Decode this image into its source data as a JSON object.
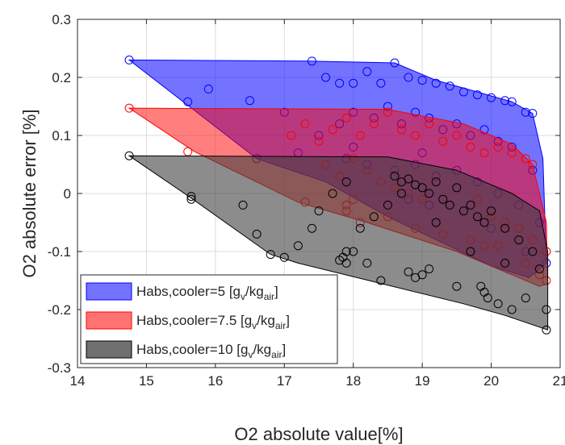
{
  "chart_data": {
    "type": "scatter",
    "title": "",
    "xlabel": "O2 absolute value[%]",
    "ylabel": "O2 absolute error [%]",
    "xlim": [
      14,
      21
    ],
    "ylim": [
      -0.3,
      0.3
    ],
    "xticks": [
      "14",
      "15",
      "16",
      "17",
      "18",
      "19",
      "20",
      "21"
    ],
    "yticks": [
      "-0.3",
      "-0.2",
      "-0.1",
      "0",
      "0.1",
      "0.2",
      "0.3"
    ],
    "grid": true,
    "legend_position": "bottom-left",
    "legend": [
      {
        "prefix": "Habs,cooler=5 [g",
        "sub1": "v",
        "mid": "/kg",
        "sub2": "air",
        "suffix": "]"
      },
      {
        "prefix": "Habs,cooler=7.5 [g",
        "sub1": "v",
        "mid": "/kg",
        "sub2": "air",
        "suffix": "]"
      },
      {
        "prefix": "Habs,cooler=10 [g",
        "sub1": "v",
        "mid": "/kg",
        "sub2": "air",
        "suffix": "]"
      }
    ],
    "series": [
      {
        "color": "#0000ff",
        "fill": "#0000ff",
        "hull": [
          [
            14.75,
            0.23
          ],
          [
            17.4,
            0.228
          ],
          [
            18.6,
            0.225
          ],
          [
            19.2,
            0.195
          ],
          [
            20.3,
            0.158
          ],
          [
            20.6,
            0.138
          ],
          [
            20.75,
            0.06
          ],
          [
            20.8,
            -0.12
          ],
          [
            20.55,
            -0.145
          ],
          [
            20.0,
            -0.125
          ],
          [
            18.5,
            -0.04
          ],
          [
            17.6,
            0.02
          ],
          [
            16.6,
            0.06
          ]
        ],
        "points": [
          [
            14.75,
            0.23
          ],
          [
            15.6,
            0.158
          ],
          [
            15.9,
            0.18
          ],
          [
            16.5,
            0.16
          ],
          [
            17.0,
            0.14
          ],
          [
            17.4,
            0.228
          ],
          [
            17.6,
            0.2
          ],
          [
            17.8,
            0.19
          ],
          [
            18.0,
            0.19
          ],
          [
            18.2,
            0.21
          ],
          [
            18.4,
            0.19
          ],
          [
            18.6,
            0.225
          ],
          [
            18.8,
            0.2
          ],
          [
            19.0,
            0.195
          ],
          [
            19.2,
            0.19
          ],
          [
            19.4,
            0.185
          ],
          [
            19.6,
            0.175
          ],
          [
            19.8,
            0.17
          ],
          [
            20.0,
            0.165
          ],
          [
            20.2,
            0.16
          ],
          [
            20.3,
            0.158
          ],
          [
            20.5,
            0.14
          ],
          [
            20.6,
            0.138
          ],
          [
            17.5,
            0.1
          ],
          [
            17.8,
            0.12
          ],
          [
            18.0,
            0.14
          ],
          [
            18.3,
            0.13
          ],
          [
            18.5,
            0.15
          ],
          [
            18.7,
            0.12
          ],
          [
            18.9,
            0.14
          ],
          [
            19.1,
            0.13
          ],
          [
            19.3,
            0.11
          ],
          [
            19.5,
            0.12
          ],
          [
            19.7,
            0.1
          ],
          [
            19.9,
            0.11
          ],
          [
            20.1,
            0.09
          ],
          [
            20.3,
            0.08
          ],
          [
            17.9,
            0.06
          ],
          [
            18.2,
            0.05
          ],
          [
            18.6,
            0.04
          ],
          [
            18.9,
            0.05
          ],
          [
            19.2,
            0.03
          ],
          [
            19.5,
            0.04
          ],
          [
            19.8,
            0.02
          ],
          [
            20.1,
            0.0
          ],
          [
            20.4,
            -0.02
          ],
          [
            20.7,
            -0.05
          ],
          [
            18.8,
            -0.01
          ],
          [
            19.1,
            -0.02
          ],
          [
            19.6,
            -0.03
          ],
          [
            20.0,
            -0.06
          ],
          [
            20.5,
            -0.1
          ],
          [
            20.8,
            -0.12
          ],
          [
            17.2,
            0.07
          ],
          [
            16.6,
            0.06
          ],
          [
            18.0,
            0.08
          ],
          [
            19.0,
            0.07
          ],
          [
            20.6,
            0.04
          ]
        ]
      },
      {
        "color": "#ff0000",
        "fill": "#ff0000",
        "hull": [
          [
            14.75,
            0.147
          ],
          [
            18.5,
            0.145
          ],
          [
            19.6,
            0.12
          ],
          [
            20.3,
            0.085
          ],
          [
            20.6,
            0.05
          ],
          [
            20.8,
            -0.05
          ],
          [
            20.82,
            -0.155
          ],
          [
            20.7,
            -0.16
          ],
          [
            19.5,
            -0.1
          ],
          [
            18.2,
            -0.05
          ],
          [
            17.2,
            -0.015
          ],
          [
            15.7,
            0.072
          ]
        ],
        "points": [
          [
            14.75,
            0.147
          ],
          [
            15.6,
            0.072
          ],
          [
            17.1,
            0.1
          ],
          [
            17.3,
            0.12
          ],
          [
            17.5,
            0.09
          ],
          [
            17.7,
            0.11
          ],
          [
            17.9,
            0.13
          ],
          [
            18.1,
            0.1
          ],
          [
            18.3,
            0.12
          ],
          [
            18.5,
            0.14
          ],
          [
            18.7,
            0.11
          ],
          [
            18.9,
            0.1
          ],
          [
            19.1,
            0.12
          ],
          [
            19.3,
            0.09
          ],
          [
            19.5,
            0.1
          ],
          [
            19.7,
            0.08
          ],
          [
            19.9,
            0.07
          ],
          [
            20.1,
            0.08
          ],
          [
            20.3,
            0.07
          ],
          [
            20.5,
            0.06
          ],
          [
            20.6,
            0.05
          ],
          [
            17.6,
            0.05
          ],
          [
            17.8,
            0.03
          ],
          [
            18.0,
            0.06
          ],
          [
            18.2,
            0.04
          ],
          [
            18.4,
            0.02
          ],
          [
            18.6,
            0.01
          ],
          [
            18.8,
            0.0
          ],
          [
            19.0,
            -0.01
          ],
          [
            19.2,
            0.02
          ],
          [
            19.4,
            -0.02
          ],
          [
            19.6,
            -0.03
          ],
          [
            19.8,
            -0.01
          ],
          [
            20.0,
            -0.04
          ],
          [
            20.2,
            -0.05
          ],
          [
            20.4,
            -0.06
          ],
          [
            20.6,
            -0.08
          ],
          [
            20.8,
            -0.1
          ],
          [
            20.8,
            -0.15
          ],
          [
            17.3,
            -0.015
          ],
          [
            17.9,
            -0.03
          ],
          [
            18.1,
            -0.05
          ],
          [
            18.5,
            -0.04
          ],
          [
            18.9,
            -0.06
          ],
          [
            19.3,
            -0.07
          ],
          [
            19.7,
            -0.08
          ],
          [
            20.1,
            -0.09
          ],
          [
            20.5,
            -0.12
          ],
          [
            17.9,
            -0.02
          ],
          [
            18.0,
            -0.01
          ],
          [
            19.9,
            -0.09
          ],
          [
            20.7,
            -0.14
          ]
        ]
      },
      {
        "color": "#000000",
        "fill": "#404040",
        "hull": [
          [
            14.75,
            0.065
          ],
          [
            18.5,
            0.063
          ],
          [
            19.5,
            0.04
          ],
          [
            20.3,
            0.0
          ],
          [
            20.7,
            -0.03
          ],
          [
            20.82,
            -0.1
          ],
          [
            20.82,
            -0.235
          ],
          [
            20.2,
            -0.21
          ],
          [
            19.6,
            -0.19
          ],
          [
            18.4,
            -0.155
          ],
          [
            17.2,
            -0.12
          ],
          [
            16.8,
            -0.105
          ],
          [
            15.65,
            -0.008
          ]
        ],
        "points": [
          [
            14.75,
            0.065
          ],
          [
            15.65,
            -0.005
          ],
          [
            15.65,
            -0.01
          ],
          [
            16.4,
            -0.02
          ],
          [
            16.6,
            -0.07
          ],
          [
            16.8,
            -0.105
          ],
          [
            17.0,
            -0.11
          ],
          [
            17.2,
            -0.09
          ],
          [
            17.4,
            -0.06
          ],
          [
            17.5,
            -0.03
          ],
          [
            17.7,
            0.0
          ],
          [
            17.9,
            0.02
          ],
          [
            18.0,
            -0.1
          ],
          [
            17.9,
            -0.12
          ],
          [
            17.85,
            -0.11
          ],
          [
            18.1,
            -0.06
          ],
          [
            18.3,
            -0.04
          ],
          [
            18.5,
            -0.02
          ],
          [
            18.6,
            0.03
          ],
          [
            18.7,
            0.02
          ],
          [
            18.8,
            0.025
          ],
          [
            18.9,
            0.015
          ],
          [
            19.0,
            0.01
          ],
          [
            19.1,
            0.0
          ],
          [
            19.2,
            0.02
          ],
          [
            19.3,
            -0.01
          ],
          [
            19.4,
            -0.02
          ],
          [
            19.5,
            0.01
          ],
          [
            19.6,
            -0.03
          ],
          [
            19.7,
            -0.02
          ],
          [
            19.8,
            -0.04
          ],
          [
            19.9,
            -0.05
          ],
          [
            20.0,
            -0.03
          ],
          [
            20.2,
            -0.06
          ],
          [
            20.4,
            -0.08
          ],
          [
            20.6,
            -0.1
          ],
          [
            20.8,
            -0.2
          ],
          [
            20.8,
            -0.235
          ],
          [
            20.3,
            -0.2
          ],
          [
            19.9,
            -0.17
          ],
          [
            19.85,
            -0.16
          ],
          [
            19.95,
            -0.18
          ],
          [
            19.0,
            -0.14
          ],
          [
            19.1,
            -0.13
          ],
          [
            18.9,
            -0.145
          ],
          [
            18.8,
            -0.135
          ],
          [
            18.4,
            -0.15
          ],
          [
            17.9,
            -0.1
          ],
          [
            17.8,
            -0.115
          ],
          [
            18.2,
            -0.12
          ],
          [
            19.5,
            -0.16
          ],
          [
            20.1,
            -0.19
          ],
          [
            20.5,
            -0.18
          ],
          [
            20.7,
            -0.13
          ],
          [
            18.7,
            0.0
          ],
          [
            19.2,
            -0.05
          ],
          [
            19.7,
            -0.1
          ],
          [
            20.2,
            -0.12
          ]
        ]
      }
    ]
  }
}
